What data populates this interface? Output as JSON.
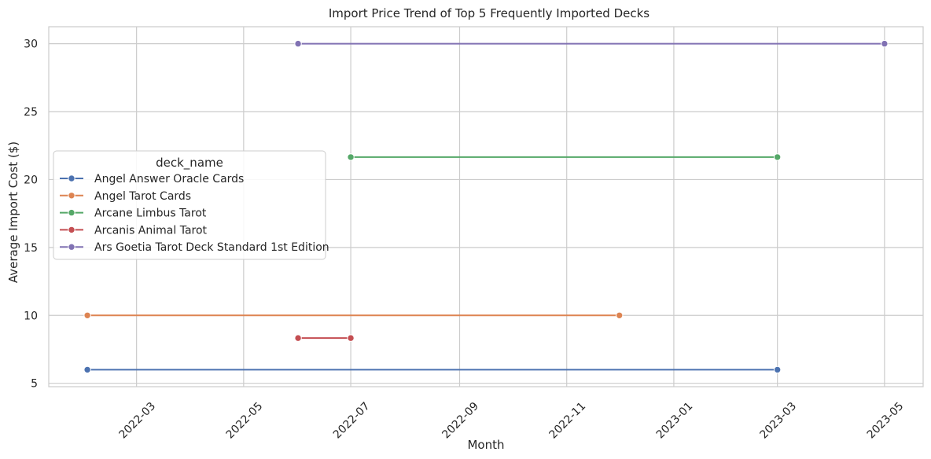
{
  "chart_data": {
    "type": "line",
    "title": "Import Price Trend of Top 5 Frequently Imported Decks",
    "xlabel": "Month",
    "ylabel": "Average Import Cost ($)",
    "x_ticks": [
      "2022-03-01",
      "2022-05-01",
      "2022-07-01",
      "2022-09-01",
      "2022-11-01",
      "2023-01-01",
      "2023-03-01",
      "2023-05-01"
    ],
    "x_tick_labels": [
      "2022-03",
      "2022-05",
      "2022-07",
      "2022-09",
      "2022-11",
      "2023-01",
      "2023-03",
      "2023-05"
    ],
    "xlim": [
      "2022-01-10",
      "2023-05-23"
    ],
    "y_ticks": [
      5,
      10,
      15,
      20,
      25,
      30
    ],
    "ylim": [
      4.75,
      31.25
    ],
    "grid": true,
    "legend": {
      "title": "deck_name",
      "placement": "center-left"
    },
    "series": [
      {
        "name": "Angel Answer Oracle Cards",
        "color": "#4c72b0",
        "marker": "circle",
        "points": [
          {
            "x": "2022-02-01",
            "y": 6.0
          },
          {
            "x": "2023-03-01",
            "y": 6.0
          }
        ]
      },
      {
        "name": "Angel Tarot Cards",
        "color": "#dd8452",
        "marker": "circle",
        "points": [
          {
            "x": "2022-02-01",
            "y": 10.0
          },
          {
            "x": "2022-12-01",
            "y": 10.0
          }
        ]
      },
      {
        "name": "Arcane Limbus Tarot",
        "color": "#55a868",
        "marker": "circle",
        "points": [
          {
            "x": "2022-07-01",
            "y": 21.65
          },
          {
            "x": "2023-03-01",
            "y": 21.65
          }
        ]
      },
      {
        "name": "Arcanis Animal Tarot",
        "color": "#c44e52",
        "marker": "circle",
        "points": [
          {
            "x": "2022-06-01",
            "y": 8.33
          },
          {
            "x": "2022-07-01",
            "y": 8.33
          }
        ]
      },
      {
        "name": "Ars Goetia Tarot Deck Standard 1st Edition",
        "color": "#8172b3",
        "marker": "circle",
        "points": [
          {
            "x": "2022-06-01",
            "y": 30.0
          },
          {
            "x": "2023-05-01",
            "y": 30.0
          }
        ]
      }
    ]
  }
}
